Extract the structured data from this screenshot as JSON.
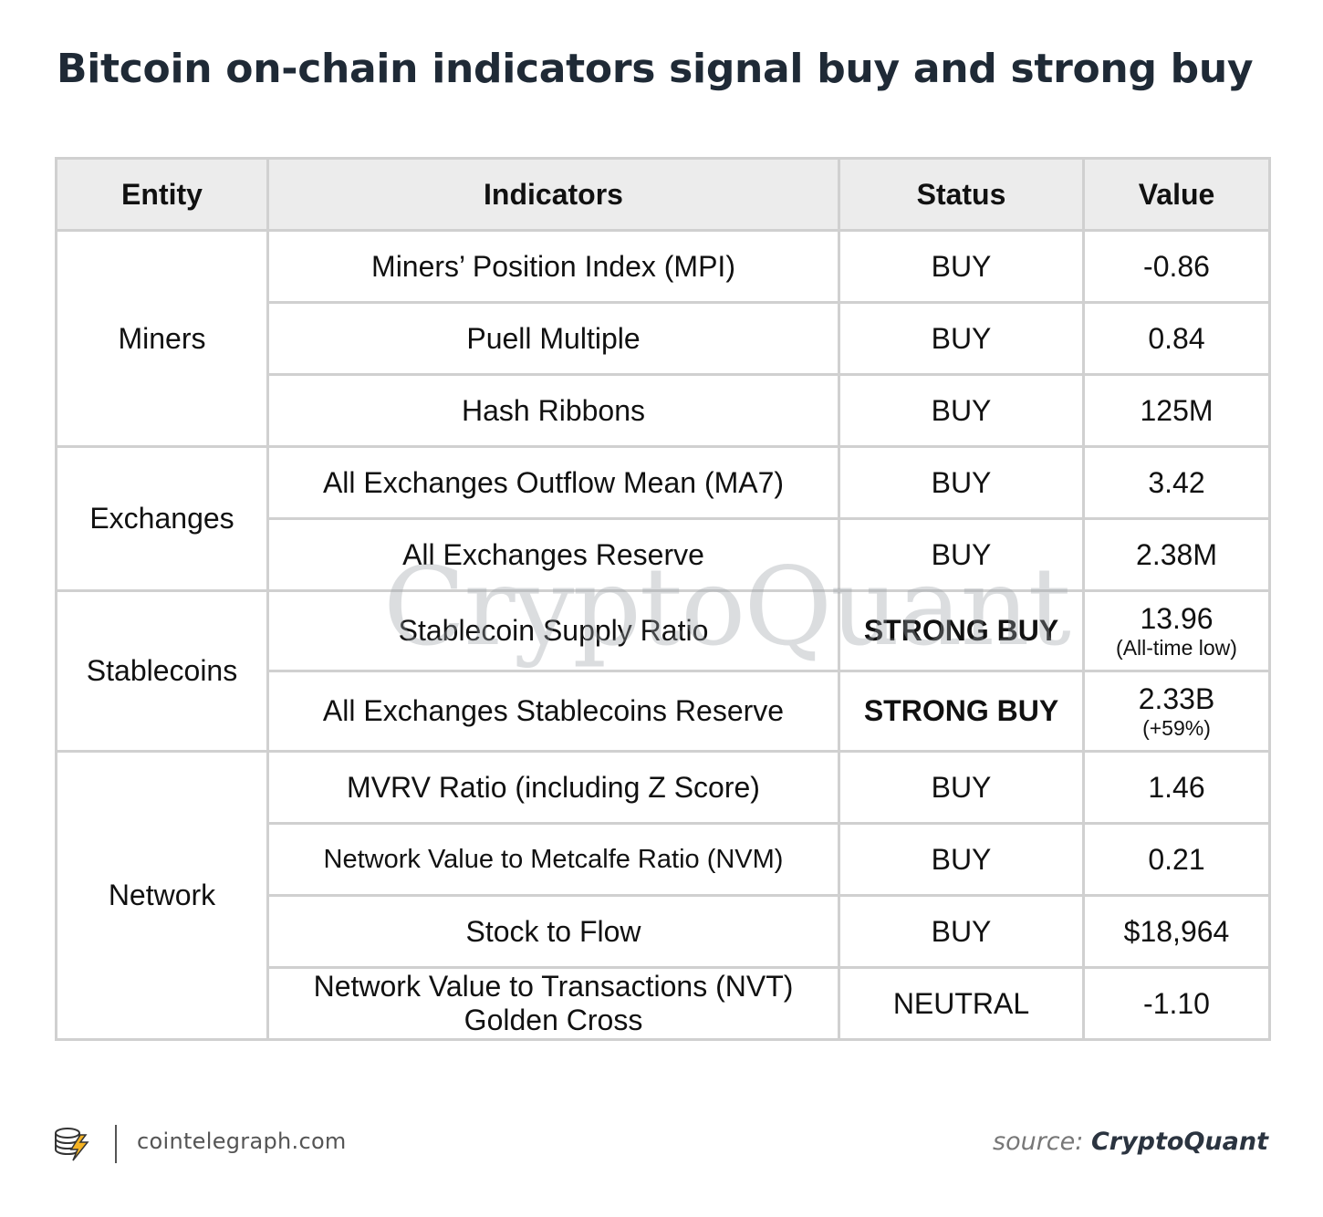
{
  "title": "Bitcoin on-chain indicators signal buy and strong buy",
  "watermark": "CryptoQuant",
  "colors": {
    "buy": "#1d9a3a",
    "strong_buy": "#1d9a3a",
    "neutral": "#b39a16",
    "header_bg": "#ececec",
    "grid": "#d0d0d0"
  },
  "table": {
    "headers": {
      "entity": "Entity",
      "indicators": "Indicators",
      "status": "Status",
      "value": "Value"
    },
    "groups": {
      "miners": "Miners",
      "exchanges": "Exchanges",
      "stablecoins": "Stablecoins",
      "network": "Network"
    },
    "rows": [
      {
        "indicator": "Miners’ Position Index (MPI)",
        "status": "BUY",
        "value": "-0.86"
      },
      {
        "indicator": "Puell Multiple",
        "status": "BUY",
        "value": "0.84"
      },
      {
        "indicator": "Hash Ribbons",
        "status": "BUY",
        "value": "125M"
      },
      {
        "indicator": "All Exchanges Outflow Mean (MA7)",
        "status": "BUY",
        "value": "3.42"
      },
      {
        "indicator": "All Exchanges Reserve",
        "status": "BUY",
        "value": "2.38M"
      },
      {
        "indicator": "Stablecoin Supply Ratio",
        "status": "STRONG BUY",
        "value": "13.96",
        "note": "(All-time low)"
      },
      {
        "indicator": "All Exchanges Stablecoins Reserve",
        "status": "STRONG BUY",
        "value": "2.33B",
        "note": "(+59%)"
      },
      {
        "indicator": "MVRV Ratio (including Z Score)",
        "status": "BUY",
        "value": "1.46"
      },
      {
        "indicator": "Network Value to Metcalfe Ratio (NVM)",
        "status": "BUY",
        "value": "0.21"
      },
      {
        "indicator": "Stock to Flow",
        "status": "BUY",
        "value": "$18,964"
      },
      {
        "indicator": "Network Value to Transactions (NVT) Golden Cross",
        "status": "NEUTRAL",
        "value": "-1.10"
      }
    ]
  },
  "footer": {
    "logo_icon": "cointelegraph-logo-icon",
    "site": "cointelegraph.com",
    "source_label": "source:",
    "source_name": "CryptoQuant"
  }
}
